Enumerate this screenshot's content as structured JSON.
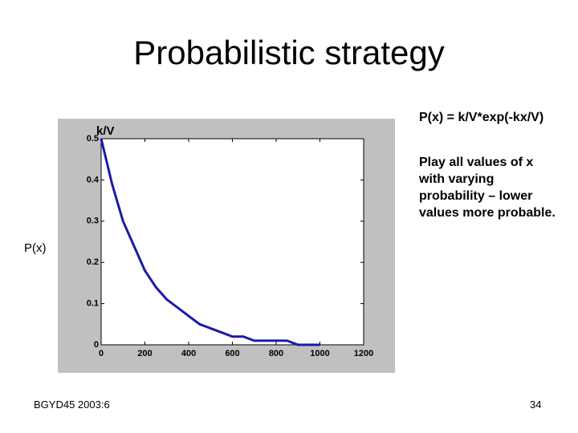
{
  "slide_title": "Probabilistic strategy",
  "notes": [
    "P(x) = k/V*exp(-kx/V)",
    "Play all values of x with varying probability – lower values more probable."
  ],
  "footer": {
    "left": "BGYD45 2003:6",
    "right": "34"
  },
  "chart_data": {
    "type": "line",
    "ylabel": "P(x)",
    "annotation": "k/V",
    "x": [
      0,
      50,
      100,
      150,
      200,
      250,
      300,
      350,
      400,
      450,
      500,
      550,
      600,
      650,
      700,
      750,
      800,
      850,
      900,
      950,
      1000
    ],
    "series": [
      {
        "color": "#1a1aa8",
        "values": [
          0.5,
          0.39,
          0.3,
          0.24,
          0.18,
          0.14,
          0.11,
          0.09,
          0.07,
          0.05,
          0.04,
          0.03,
          0.02,
          0.02,
          0.01,
          0.01,
          0.01,
          0.01,
          0.0,
          0.0,
          0.0
        ]
      }
    ],
    "xlim": [
      0,
      1200
    ],
    "ylim": [
      0,
      0.5
    ],
    "xticks": [
      0,
      200,
      400,
      600,
      800,
      1000,
      1200
    ],
    "yticks": [
      0,
      0.1,
      0.2,
      0.3,
      0.4,
      0.5
    ]
  }
}
